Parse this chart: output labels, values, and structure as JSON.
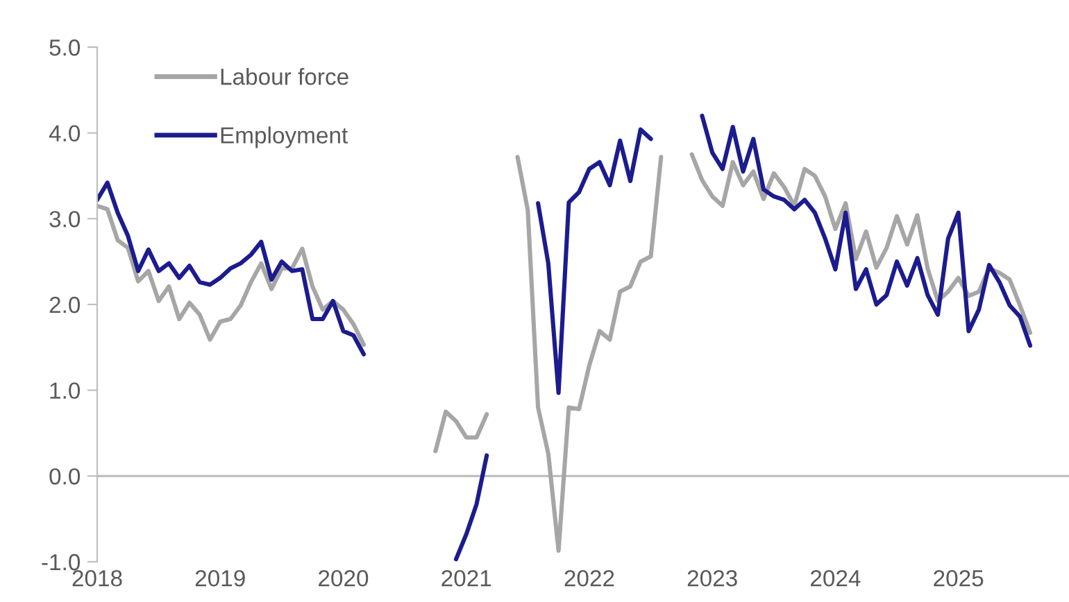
{
  "chart_data": {
    "type": "line",
    "x": [
      "2018-01",
      "2018-02",
      "2018-03",
      "2018-04",
      "2018-05",
      "2018-06",
      "2018-07",
      "2018-08",
      "2018-09",
      "2018-10",
      "2018-11",
      "2018-12",
      "2019-01",
      "2019-02",
      "2019-03",
      "2019-04",
      "2019-05",
      "2019-06",
      "2019-07",
      "2019-08",
      "2019-09",
      "2019-10",
      "2019-11",
      "2019-12",
      "2020-01",
      "2020-02",
      "2020-03",
      "2020-04",
      "2020-05",
      "2020-06",
      "2020-07",
      "2020-08",
      "2020-09",
      "2020-10",
      "2020-11",
      "2020-12",
      "2021-01",
      "2021-02",
      "2021-03",
      "2021-04",
      "2021-05",
      "2021-06",
      "2021-07",
      "2021-08",
      "2021-09",
      "2021-10",
      "2021-11",
      "2021-12",
      "2022-01",
      "2022-02",
      "2022-03",
      "2022-04",
      "2022-05",
      "2022-06",
      "2022-07",
      "2022-08",
      "2022-09",
      "2022-10",
      "2022-11",
      "2022-12",
      "2023-01",
      "2023-02",
      "2023-03",
      "2023-04",
      "2023-05",
      "2023-06",
      "2023-07",
      "2023-08",
      "2023-09",
      "2023-10",
      "2023-11",
      "2023-12",
      "2024-01",
      "2024-02",
      "2024-03",
      "2024-04",
      "2024-05",
      "2024-06",
      "2024-07",
      "2024-08",
      "2024-09",
      "2024-10",
      "2024-11",
      "2024-12",
      "2025-01",
      "2025-02",
      "2025-03",
      "2025-04",
      "2025-05",
      "2025-06",
      "2025-07",
      "2025-08"
    ],
    "series": [
      {
        "name": "Labour force",
        "color": "#a6a6a6",
        "values": [
          3.15,
          3.11,
          2.75,
          2.66,
          2.27,
          2.39,
          2.04,
          2.21,
          1.83,
          2.02,
          1.88,
          1.59,
          1.8,
          1.83,
          1.99,
          2.26,
          2.48,
          2.18,
          2.42,
          2.42,
          2.65,
          2.21,
          1.94,
          2.04,
          1.94,
          1.77,
          1.53,
          null,
          null,
          null,
          null,
          null,
          null,
          0.29,
          0.75,
          0.64,
          0.45,
          0.45,
          0.72,
          null,
          null,
          3.72,
          3.1,
          0.8,
          0.26,
          -0.87,
          0.8,
          0.78,
          1.29,
          1.69,
          1.59,
          2.15,
          2.21,
          2.5,
          2.56,
          3.72,
          null,
          null,
          3.75,
          3.45,
          3.26,
          3.15,
          3.66,
          3.39,
          3.55,
          3.23,
          3.53,
          3.37,
          3.15,
          3.58,
          3.5,
          3.26,
          2.88,
          3.18,
          2.53,
          2.85,
          2.43,
          2.66,
          3.03,
          2.7,
          3.04,
          2.42,
          2.04,
          2.15,
          2.31,
          2.1,
          2.15,
          2.42,
          2.37,
          2.29,
          1.99,
          1.67
        ]
      },
      {
        "name": "Employment",
        "color": "#1c1c8e",
        "values": [
          3.22,
          3.42,
          3.07,
          2.8,
          2.39,
          2.64,
          2.39,
          2.48,
          2.31,
          2.45,
          2.26,
          2.23,
          2.31,
          2.42,
          2.48,
          2.58,
          2.73,
          2.29,
          2.5,
          2.39,
          2.41,
          1.83,
          1.83,
          2.04,
          1.69,
          1.64,
          1.42,
          null,
          null,
          null,
          null,
          null,
          null,
          null,
          null,
          -0.97,
          -0.68,
          -0.33,
          0.24,
          null,
          null,
          null,
          null,
          3.18,
          2.48,
          0.97,
          3.19,
          3.31,
          3.58,
          3.66,
          3.39,
          3.91,
          3.44,
          4.04,
          3.93,
          null,
          null,
          null,
          null,
          4.2,
          3.77,
          3.58,
          4.07,
          3.55,
          3.93,
          3.34,
          3.26,
          3.22,
          3.11,
          3.22,
          3.07,
          2.77,
          2.41,
          3.07,
          2.18,
          2.41,
          2.0,
          2.11,
          2.5,
          2.22,
          2.54,
          2.11,
          1.88,
          2.77,
          3.07,
          1.69,
          1.94,
          2.46,
          2.26,
          1.99,
          1.86,
          1.52
        ]
      }
    ],
    "xlim": [
      "2018-01",
      "2025-11-25"
    ],
    "xticks": [
      {
        "value": "2018",
        "label": "2018"
      },
      {
        "value": "2019",
        "label": "2019"
      },
      {
        "value": "2020",
        "label": "2020"
      },
      {
        "value": "2021",
        "label": "2021"
      },
      {
        "value": "2022",
        "label": "2022"
      },
      {
        "value": "2023",
        "label": "2023"
      },
      {
        "value": "2024",
        "label": "2024"
      },
      {
        "value": "2025",
        "label": "2025"
      }
    ],
    "ylim": [
      -1,
      5
    ],
    "yticks": [
      {
        "value": -1,
        "label": "-1.0"
      },
      {
        "value": 0,
        "label": "0.0"
      },
      {
        "value": 1,
        "label": "1.0"
      },
      {
        "value": 2,
        "label": "2.0"
      },
      {
        "value": 3,
        "label": "3.0"
      },
      {
        "value": 4,
        "label": "4.0"
      },
      {
        "value": 5,
        "label": "5.0"
      }
    ],
    "ref_lines": [
      {
        "axis": "y",
        "value": 0,
        "color": "#bfbfbf"
      }
    ],
    "grid": false,
    "legend": "top left",
    "marker": "none",
    "line_style": "solid"
  }
}
